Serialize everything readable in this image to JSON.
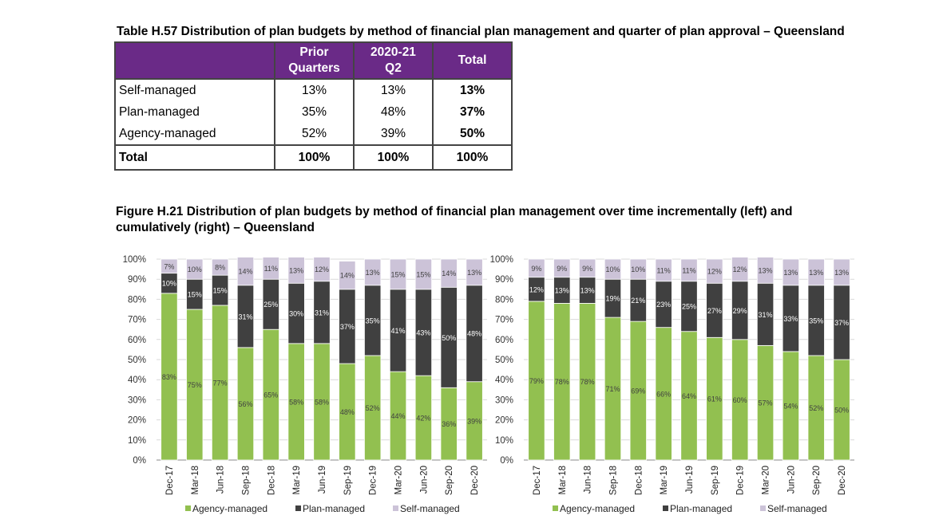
{
  "table": {
    "title": "Table H.57 Distribution of plan budgets by method of financial plan management and quarter of plan approval – Queensland",
    "headers": [
      "",
      "Prior\nQuarters",
      "2020-21\nQ2",
      "Total"
    ],
    "rows": [
      {
        "label": "Self-managed",
        "prior": "13%",
        "q2": "13%",
        "total": "13%"
      },
      {
        "label": "Plan-managed",
        "prior": "35%",
        "q2": "48%",
        "total": "37%"
      },
      {
        "label": "Agency-managed",
        "prior": "52%",
        "q2": "39%",
        "total": "50%"
      }
    ],
    "total_row": {
      "label": "Total",
      "prior": "100%",
      "q2": "100%",
      "total": "100%"
    }
  },
  "figure": {
    "title": "Figure H.21 Distribution of plan budgets by method of financial plan management over time incrementally (left) and cumulatively (right) – Queensland"
  },
  "colors": {
    "agency": "#92c050",
    "plan": "#404040",
    "self": "#ccc3d8",
    "header": "#6a2a87"
  },
  "chart_data": [
    {
      "type": "bar",
      "stacked": true,
      "categories": [
        "Dec-17",
        "Mar-18",
        "Jun-18",
        "Sep-18",
        "Dec-18",
        "Mar-19",
        "Jun-19",
        "Sep-19",
        "Dec-19",
        "Mar-20",
        "Jun-20",
        "Sep-20",
        "Dec-20"
      ],
      "series": [
        {
          "name": "Agency-managed",
          "values": [
            83,
            75,
            77,
            56,
            65,
            58,
            58,
            48,
            52,
            44,
            42,
            36,
            39
          ]
        },
        {
          "name": "Plan-managed",
          "values": [
            10,
            15,
            15,
            31,
            25,
            30,
            31,
            37,
            35,
            41,
            43,
            50,
            48
          ]
        },
        {
          "name": "Self-managed",
          "values": [
            7,
            10,
            8,
            14,
            11,
            13,
            12,
            14,
            13,
            15,
            15,
            14,
            13
          ]
        }
      ],
      "yticks": [
        "0%",
        "10%",
        "20%",
        "30%",
        "40%",
        "50%",
        "60%",
        "70%",
        "80%",
        "90%",
        "100%"
      ],
      "ylim": [
        0,
        100
      ],
      "legend": "bottom"
    },
    {
      "type": "bar",
      "stacked": true,
      "categories": [
        "Dec-17",
        "Mar-18",
        "Jun-18",
        "Sep-18",
        "Dec-18",
        "Mar-19",
        "Jun-19",
        "Sep-19",
        "Dec-19",
        "Mar-20",
        "Jun-20",
        "Sep-20",
        "Dec-20"
      ],
      "series": [
        {
          "name": "Agency-managed",
          "values": [
            79,
            78,
            78,
            71,
            69,
            66,
            64,
            61,
            60,
            57,
            54,
            52,
            50
          ]
        },
        {
          "name": "Plan-managed",
          "values": [
            12,
            13,
            13,
            19,
            21,
            23,
            25,
            27,
            29,
            31,
            33,
            35,
            37
          ]
        },
        {
          "name": "Self-managed",
          "values": [
            9,
            9,
            9,
            10,
            10,
            11,
            11,
            12,
            12,
            13,
            13,
            13,
            13
          ]
        }
      ],
      "yticks": [
        "0%",
        "10%",
        "20%",
        "30%",
        "40%",
        "50%",
        "60%",
        "70%",
        "80%",
        "90%",
        "100%"
      ],
      "ylim": [
        0,
        100
      ],
      "legend": "bottom"
    }
  ]
}
